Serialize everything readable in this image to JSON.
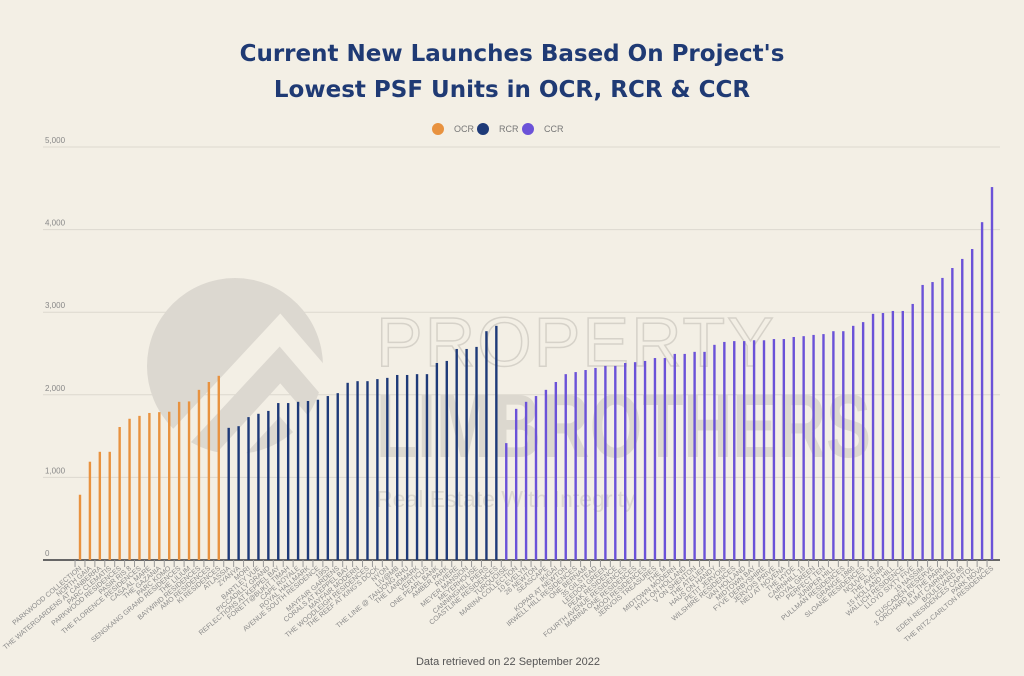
{
  "chart_data": {
    "type": "bar",
    "title": [
      "Current New Launches Based On Project's",
      "Lowest PSF Units in OCR, RCR & CCR"
    ],
    "xlabel": "",
    "ylabel": "",
    "ylim": [
      0,
      5000
    ],
    "yticks": [
      0,
      1000,
      2000,
      3000,
      4000,
      5000
    ],
    "ytick_labels": [
      "0",
      "1,000",
      "2,000",
      "3,000",
      "4,000",
      "5,000"
    ],
    "grid": true,
    "legend_position": "top-center",
    "series": [
      {
        "name": "OCR",
        "color": "#e8923f",
        "categories": [
          "PARKWOOD COLLECTION",
          "NORTH GAIA",
          "THE WATERGARDENS AT CANBERRA",
          "PARC CLEMATIS",
          "PARKWOOD RESIDENCES",
          "PASIR RIS 8",
          "THE FLORENCE RESIDENCES",
          "CASA AL MARE",
          "THE GAZANIA",
          "PARC KOMO",
          "SENGKANG GRAND RESIDENCES",
          "THE LILIUM",
          "BAYWIND RESIDENCES",
          "AMO RESIDENCES",
          "KI RESIDENCES"
        ],
        "values": [
          790,
          1190,
          1310,
          1310,
          1610,
          1710,
          1745,
          1780,
          1790,
          1795,
          1915,
          1920,
          2060,
          2155,
          2230
        ]
      },
      {
        "name": "RCR",
        "color": "#1e3a78",
        "categories": [
          "ATLASSIA",
          "ZYANYA",
          "MORI",
          "BARTLEY VUE",
          "PICCADILLY GRAND",
          "REFLECTIONS AT KEPPEL BAY",
          "FORETT@BUKIT TIMAH",
          "CAPE ROYALE",
          "ROYAL HALLMARK",
          "AVENUE SOUTH RESIDENCE",
          "1953",
          "MAYFAIR GARDENS",
          "CORALS AT KEPPEL BAY",
          "MAYFAIR MODERN",
          "THE WOODLEIGH RESIDENCES",
          "THE REEF AT KING'S DOCK",
          "NYON",
          "LIV@MB",
          "THE LINE @ TANJONG RHU",
          "THE LANDMARK",
          "VERTICUS",
          "ONE PEARL BANK",
          "AMBER PARK",
          "RIVIERE",
          "MEYER MANSION",
          "MEYERHOUSE",
          "CANNINGHILL PIERS",
          "COASTLINE RESIDENCES"
        ],
        "values": [
          1600,
          1620,
          1730,
          1770,
          1805,
          1900,
          1900,
          1915,
          1925,
          1940,
          1985,
          2020,
          2145,
          2165,
          2165,
          2190,
          2205,
          2240,
          2240,
          2250,
          2250,
          2385,
          2410,
          2555,
          2555,
          2580,
          2770,
          2835
        ]
      },
      {
        "name": "CCR",
        "color": "#6b52d8",
        "categories": [
          "TURQUOISE",
          "MARINA COLLECTION",
          "10 EVELYN",
          "26 NEWTON",
          "SEASCAPE",
          "IKIGAI",
          "KOPAR AT NEWTON",
          "IRWELL HILL RESIDENCES",
          "ONE BERNAM",
          "35 GILSTEAD",
          "LEEDON GREEN",
          "PEAK RESIDENCE",
          "FOURTH AVENUE RESIDENCES",
          "MARINA ONE RESIDENCES",
          "MOOI RESIDENCES",
          "JERVOIS TREASURES",
          "THE M",
          "MIDTOWN MODERN",
          "HYLL ON HOLLAND",
          "V ON SHENTON",
          "THE ATELIER",
          "HAUS ON HANDY",
          "PETIT JERVOIS",
          "WILSHIRE RESIDENCES",
          "VAN HOLLAND",
          "MIDTOWN BAY",
          "FYVE DERBYSHIRE",
          "JERVOIS PRIVE",
          "NEU AT NOVENA",
          "THE HYDE",
          "CAIRNHILL 16",
          "ROYAL GREEN",
          "PERFECT TEN",
          "JUNIPER HILL",
          "PULLMAN RESIDENCES",
          "GRANGE 1866",
          "SLOANE RESIDENCES",
          "NOUVEL 18",
          "THE AVENIR",
          "15 HOLLAND HILL",
          "WALLICH RESIDENCE",
          "LLOYD SIXTY FIVE",
          "19 NASSIM",
          "CUSCADEN RESERVE",
          "3 ORCHARD BY THE PARK",
          "KLIMT CAIRNHILL",
          "BOULEVARD 88",
          "EDEN RESIDENCES CAPITOL",
          "PARK NOVA",
          "THE RITZ-CARLTON RESIDENCES"
        ],
        "values": [
          1415,
          1830,
          1915,
          1985,
          2060,
          2155,
          2250,
          2275,
          2300,
          2325,
          2350,
          2350,
          2385,
          2395,
          2410,
          2445,
          2445,
          2495,
          2495,
          2520,
          2520,
          2605,
          2640,
          2650,
          2650,
          2660,
          2660,
          2675,
          2675,
          2700,
          2710,
          2725,
          2735,
          2770,
          2770,
          2835,
          2880,
          2980,
          2990,
          3015,
          3015,
          3100,
          3330,
          3365,
          3415,
          3535,
          3645,
          3765,
          4090,
          4515
        ]
      }
    ],
    "footnote": "Data retrieved on 22 September 2022"
  },
  "watermark": {
    "line1": "PROPERTY",
    "line2": "LIMBROTHERS",
    "tagline": "Real Estate With Integrity"
  }
}
